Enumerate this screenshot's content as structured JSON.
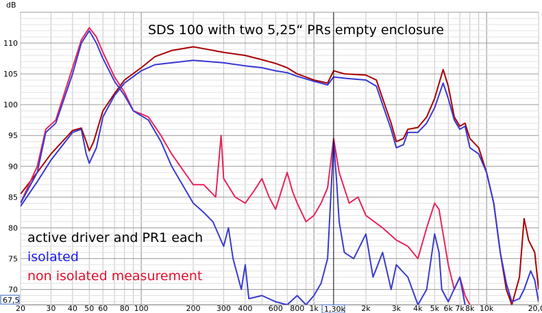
{
  "chart_data": {
    "type": "line",
    "title": "SDS 100 with two 5,25“ PRs empty enclosure",
    "ylabel": "dB",
    "xlabel": "",
    "x_scale": "log",
    "xlim": [
      20,
      20000
    ],
    "ylim": [
      67.5,
      115
    ],
    "grid": true,
    "x_ticks": [
      {
        "v": 20,
        "label": "20"
      },
      {
        "v": 30,
        "label": "30"
      },
      {
        "v": 40,
        "label": "40"
      },
      {
        "v": 50,
        "label": "50"
      },
      {
        "v": 60,
        "label": "60"
      },
      {
        "v": 80,
        "label": "80"
      },
      {
        "v": 100,
        "label": "100"
      },
      {
        "v": 200,
        "label": "200"
      },
      {
        "v": 300,
        "label": "300"
      },
      {
        "v": 400,
        "label": "400"
      },
      {
        "v": 600,
        "label": "600"
      },
      {
        "v": 800,
        "label": "800"
      },
      {
        "v": 1000,
        "label": "1k"
      },
      {
        "v": 2000,
        "label": "2k"
      },
      {
        "v": 3000,
        "label": "3k"
      },
      {
        "v": 4000,
        "label": "4k"
      },
      {
        "v": 5000,
        "label": "5k"
      },
      {
        "v": 6000,
        "label": "6k"
      },
      {
        "v": 7000,
        "label": "7k"
      },
      {
        "v": 8000,
        "label": "8k"
      },
      {
        "v": 10000,
        "label": "10k"
      },
      {
        "v": 20000,
        "label": "20,0k"
      }
    ],
    "y_ticks": [
      70,
      75,
      80,
      85,
      90,
      95,
      100,
      105,
      110
    ],
    "y_min_label": "67,5",
    "cursor": {
      "x": 1300,
      "label": "1,30k"
    },
    "annotations": [
      {
        "text": "active driver and PR1 each",
        "color": "#000000"
      },
      {
        "text": "isolated",
        "color": "#1a1ae6"
      },
      {
        "text": "non isolated measurement",
        "color": "#e0102e"
      }
    ],
    "series": [
      {
        "color": "#a80000",
        "points": [
          [
            20,
            85.5
          ],
          [
            25,
            89
          ],
          [
            30,
            92
          ],
          [
            40,
            95.8
          ],
          [
            45,
            96.2
          ],
          [
            48,
            94
          ],
          [
            50,
            92.5
          ],
          [
            53,
            94
          ],
          [
            60,
            99
          ],
          [
            70,
            101.8
          ],
          [
            80,
            104
          ],
          [
            100,
            106
          ],
          [
            120,
            107.8
          ],
          [
            150,
            108.8
          ],
          [
            200,
            109.4
          ],
          [
            220,
            109.2
          ],
          [
            300,
            108.5
          ],
          [
            400,
            108
          ],
          [
            500,
            107.3
          ],
          [
            600,
            106.7
          ],
          [
            700,
            106
          ],
          [
            800,
            105
          ],
          [
            1000,
            104
          ],
          [
            1200,
            103.5
          ],
          [
            1300,
            105.5
          ],
          [
            1500,
            105
          ],
          [
            2000,
            104.8
          ],
          [
            2300,
            104
          ],
          [
            2500,
            101
          ],
          [
            2800,
            97
          ],
          [
            3000,
            94
          ],
          [
            3300,
            94.5
          ],
          [
            3500,
            96
          ],
          [
            4000,
            96.3
          ],
          [
            4500,
            98
          ],
          [
            5000,
            101
          ],
          [
            5600,
            105.7
          ],
          [
            6000,
            103
          ],
          [
            6500,
            98
          ],
          [
            7000,
            96.5
          ],
          [
            7500,
            97
          ],
          [
            8000,
            94.5
          ],
          [
            9000,
            93
          ],
          [
            10000,
            89
          ],
          [
            11000,
            84
          ],
          [
            12000,
            76
          ],
          [
            13000,
            70
          ],
          [
            14000,
            67.5
          ],
          [
            15500,
            72
          ],
          [
            16500,
            81.5
          ],
          [
            17500,
            78
          ],
          [
            19000,
            76
          ],
          [
            20000,
            70
          ]
        ]
      },
      {
        "color": "#e8235a",
        "points": [
          [
            20,
            84
          ],
          [
            25,
            90
          ],
          [
            28,
            96
          ],
          [
            32,
            97.5
          ],
          [
            40,
            106
          ],
          [
            45,
            110.5
          ],
          [
            50,
            112.5
          ],
          [
            55,
            111
          ],
          [
            60,
            108.5
          ],
          [
            70,
            104.5
          ],
          [
            80,
            102
          ],
          [
            90,
            99
          ],
          [
            100,
            98.5
          ],
          [
            110,
            98
          ],
          [
            130,
            95
          ],
          [
            150,
            92
          ],
          [
            200,
            87
          ],
          [
            230,
            87
          ],
          [
            270,
            85
          ],
          [
            290,
            95
          ],
          [
            300,
            88
          ],
          [
            350,
            85
          ],
          [
            400,
            84
          ],
          [
            450,
            86
          ],
          [
            500,
            88
          ],
          [
            550,
            85
          ],
          [
            600,
            83
          ],
          [
            700,
            89
          ],
          [
            750,
            86
          ],
          [
            800,
            84
          ],
          [
            900,
            81
          ],
          [
            1000,
            82
          ],
          [
            1100,
            84
          ],
          [
            1200,
            86.5
          ],
          [
            1300,
            94.5
          ],
          [
            1400,
            89
          ],
          [
            1600,
            84
          ],
          [
            1800,
            85
          ],
          [
            2000,
            82
          ],
          [
            2500,
            80
          ],
          [
            3000,
            78
          ],
          [
            3500,
            77
          ],
          [
            4000,
            75
          ],
          [
            4500,
            80
          ],
          [
            5000,
            84
          ],
          [
            5300,
            83
          ],
          [
            5600,
            79
          ],
          [
            6000,
            74
          ],
          [
            6500,
            70
          ],
          [
            7000,
            72
          ],
          [
            7500,
            69
          ],
          [
            8000,
            67.5
          ]
        ]
      },
      {
        "color": "#3737d6",
        "points": [
          [
            20,
            83.5
          ],
          [
            25,
            87.5
          ],
          [
            30,
            91
          ],
          [
            40,
            95.5
          ],
          [
            45,
            96
          ],
          [
            48,
            92
          ],
          [
            50,
            90.5
          ],
          [
            55,
            93
          ],
          [
            60,
            98
          ],
          [
            70,
            101.5
          ],
          [
            80,
            103.5
          ],
          [
            100,
            105.5
          ],
          [
            120,
            106.5
          ],
          [
            150,
            106.8
          ],
          [
            200,
            107.2
          ],
          [
            300,
            106.8
          ],
          [
            400,
            106.3
          ],
          [
            500,
            106
          ],
          [
            600,
            105.5
          ],
          [
            700,
            105.2
          ],
          [
            800,
            104.6
          ],
          [
            1000,
            103.8
          ],
          [
            1200,
            103.2
          ],
          [
            1300,
            104.5
          ],
          [
            1500,
            104.3
          ],
          [
            2000,
            104
          ],
          [
            2300,
            103
          ],
          [
            2500,
            100
          ],
          [
            2800,
            96
          ],
          [
            3000,
            93
          ],
          [
            3300,
            93.5
          ],
          [
            3500,
            95.5
          ],
          [
            4000,
            95.5
          ],
          [
            4500,
            97
          ],
          [
            5000,
            99.5
          ],
          [
            5600,
            103.5
          ],
          [
            6000,
            101
          ],
          [
            6500,
            97.5
          ],
          [
            7000,
            96
          ],
          [
            7500,
            96.5
          ],
          [
            8000,
            93
          ],
          [
            9000,
            92
          ],
          [
            10000,
            89
          ],
          [
            11000,
            84
          ],
          [
            12000,
            76
          ],
          [
            13000,
            71
          ],
          [
            14000,
            68
          ],
          [
            15500,
            68.5
          ],
          [
            16500,
            70
          ],
          [
            18000,
            73
          ],
          [
            19000,
            71.5
          ],
          [
            20000,
            68
          ]
        ]
      },
      {
        "color": "#3a3ad0",
        "points": [
          [
            20,
            84
          ],
          [
            25,
            89
          ],
          [
            28,
            95.5
          ],
          [
            32,
            97
          ],
          [
            40,
            105
          ],
          [
            45,
            110
          ],
          [
            50,
            112
          ],
          [
            55,
            110
          ],
          [
            60,
            107.5
          ],
          [
            70,
            103.8
          ],
          [
            80,
            101.5
          ],
          [
            90,
            99
          ],
          [
            100,
            98.2
          ],
          [
            110,
            97.5
          ],
          [
            130,
            94
          ],
          [
            150,
            90
          ],
          [
            200,
            84
          ],
          [
            230,
            82.5
          ],
          [
            260,
            81
          ],
          [
            300,
            77
          ],
          [
            320,
            80
          ],
          [
            340,
            75
          ],
          [
            380,
            70
          ],
          [
            400,
            74
          ],
          [
            420,
            68.5
          ],
          [
            500,
            69
          ],
          [
            600,
            68
          ],
          [
            700,
            67.5
          ],
          [
            800,
            69
          ],
          [
            900,
            67.5
          ],
          [
            1000,
            69
          ],
          [
            1100,
            71
          ],
          [
            1200,
            75
          ],
          [
            1300,
            94
          ],
          [
            1350,
            88
          ],
          [
            1400,
            81
          ],
          [
            1500,
            76
          ],
          [
            1700,
            75
          ],
          [
            2000,
            79
          ],
          [
            2200,
            72
          ],
          [
            2500,
            76
          ],
          [
            2800,
            70
          ],
          [
            3000,
            74
          ],
          [
            3500,
            72
          ],
          [
            4000,
            67.5
          ],
          [
            4500,
            70
          ],
          [
            5000,
            79
          ],
          [
            5300,
            76
          ],
          [
            5500,
            70
          ],
          [
            6000,
            68
          ],
          [
            7000,
            72
          ],
          [
            7500,
            67.5
          ]
        ]
      }
    ]
  }
}
